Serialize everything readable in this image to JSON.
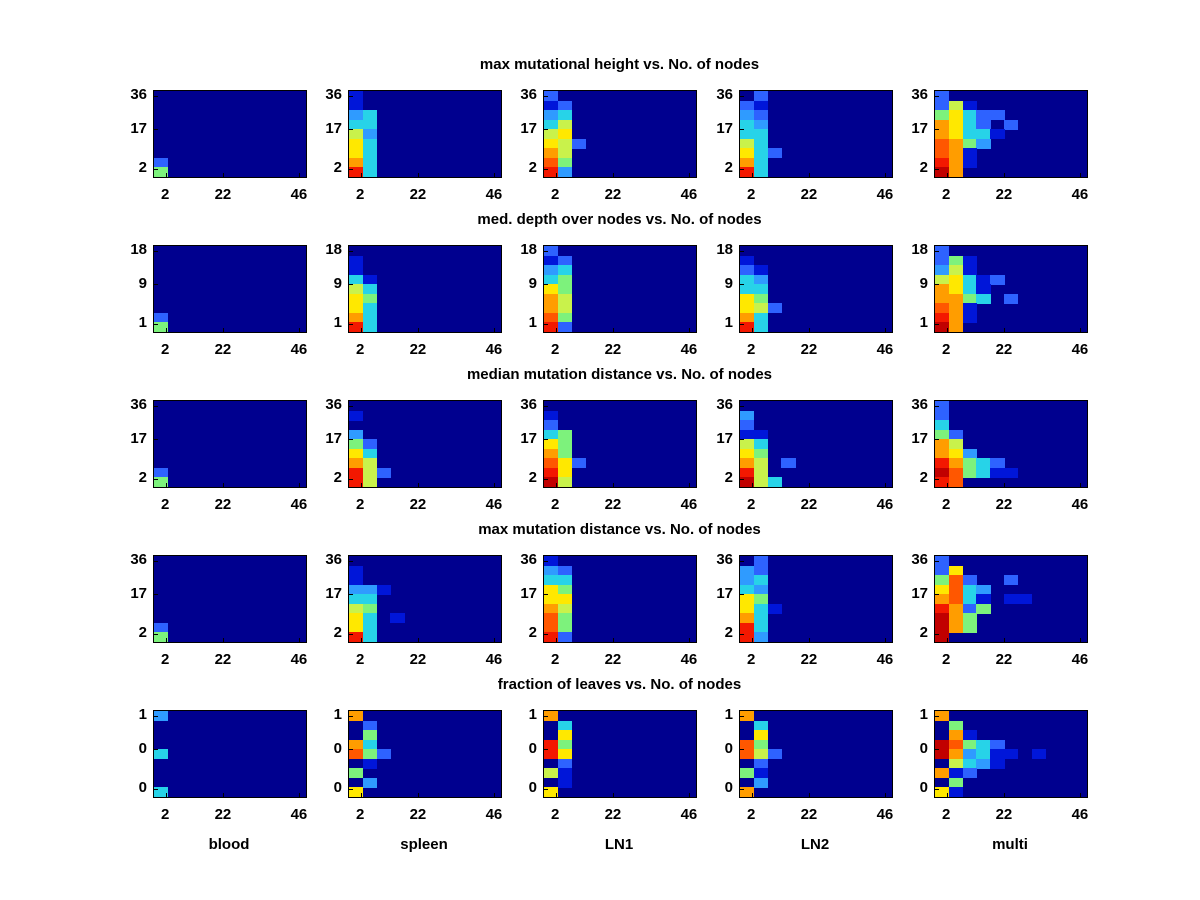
{
  "chart_data": {
    "type": "heatmap",
    "layout": "5 rows x 5 columns of subplots; each row shares a centered title; each column shares a bottom tissue label; colormap jet on dark-navy background",
    "colormap": "jet",
    "columns": [
      "blood",
      "spleen",
      "LN1",
      "LN2",
      "multi"
    ],
    "x_ticks": [
      "2",
      "22",
      "46"
    ],
    "xlabel": "No. of nodes",
    "grid_size": {
      "cols": 11,
      "rows": 9
    },
    "palette": {
      ".": "#00008f",
      "b": "#0016d9",
      "B": "#2e62ff",
      "c": "#2f9bff",
      "C": "#27d3e8",
      "g": "#7df27c",
      "Y": "#c9f24b",
      "y": "#ffe800",
      "o": "#ff9d00",
      "O": "#ff5700",
      "r": "#f31800",
      "R": "#c10000"
    },
    "rows": [
      {
        "title": "max mutational height vs. No. of nodes",
        "y_ticks": [
          "36",
          "17",
          "2"
        ],
        "grids": [
          [
            "...........",
            "...........",
            "...........",
            "...........",
            "...........",
            "...........",
            "...........",
            "B..........",
            "g.........."
          ],
          [
            "b..........",
            "b..........",
            "cC.........",
            "CC.........",
            "Yc.........",
            "yC.........",
            "yC.........",
            "oC.........",
            "rC........."
          ],
          [
            "B..........",
            "bB.........",
            "cC.........",
            "CY.........",
            "Yy.........",
            "yYB........",
            "oY.........",
            "Og.........",
            "rc........."
          ],
          [
            ".B.........",
            "Bb.........",
            "cB.........",
            "Cc.........",
            "CC.........",
            "YC.........",
            "yCB........",
            "oC.........",
            "rC........."
          ],
          [
            "B..........",
            "BYb........",
            "gyCBB......",
            "oyCB.B.....",
            "oyCCb......",
            "Oogc.......",
            "Oob........",
            "rob........",
            "Ro........."
          ]
        ]
      },
      {
        "title": "med. depth over nodes vs. No. of nodes",
        "y_ticks": [
          "18",
          "9",
          "1"
        ],
        "grids": [
          [
            "...........",
            "...........",
            "...........",
            "...........",
            "...........",
            "...........",
            "...........",
            "B..........",
            "g.........."
          ],
          [
            "...........",
            "b..........",
            "b..........",
            "Cb.........",
            "YC.........",
            "yg.........",
            "yC.........",
            "oC.........",
            "rC........."
          ],
          [
            "B..........",
            "bB.........",
            "cC.........",
            "Cg.........",
            "yg.........",
            "oY.........",
            "oY.........",
            "Og.........",
            "rB........."
          ],
          [
            "...........",
            "b..........",
            "Bb.........",
            "Cc.........",
            "CC.........",
            "yg.........",
            "yYB........",
            "oC.........",
            "rC........."
          ],
          [
            "B..........",
            "Bgb........",
            "cYb........",
            "YyCbB......",
            "oyCb.......",
            "oogC.B.....",
            "Oob........",
            "rob........",
            "Ro........."
          ]
        ]
      },
      {
        "title": "median mutation distance vs. No. of nodes",
        "y_ticks": [
          "36",
          "17",
          "2"
        ],
        "grids": [
          [
            "...........",
            "...........",
            "...........",
            "...........",
            "...........",
            "...........",
            "...........",
            "B..........",
            "g.........."
          ],
          [
            "...........",
            "b..........",
            "...........",
            "c..........",
            "gB.........",
            "yC.........",
            "oY.........",
            "rYB........",
            "rY........."
          ],
          [
            "...........",
            "b..........",
            "B..........",
            "Cg.........",
            "yg.........",
            "og.........",
            "OyB........",
            "ry.........",
            "RY........."
          ],
          [
            "...........",
            "c..........",
            "B..........",
            "bb.........",
            "YC.........",
            "yg.........",
            "oY.B.......",
            "rY.........",
            "RYC........"
          ],
          [
            "B..........",
            "B..........",
            "C..........",
            "gB.........",
            "oY.........",
            "oyc........",
            "rogCB......",
            "ROgCbb.....",
            "rO........."
          ]
        ]
      },
      {
        "title": "max mutation distance vs. No. of nodes",
        "y_ticks": [
          "36",
          "17",
          "2"
        ],
        "grids": [
          [
            "...........",
            "...........",
            "...........",
            "...........",
            "...........",
            "...........",
            "...........",
            "B..........",
            "g.........."
          ],
          [
            "...........",
            "b..........",
            "b..........",
            "ccb........",
            "CC.........",
            "Yg.........",
            "yC.b.......",
            "yC.........",
            "rC........."
          ],
          [
            "b..........",
            "cB.........",
            "CC.........",
            "yg.........",
            "yy.........",
            "oY.........",
            "Og.........",
            "Og.........",
            "rB........."
          ],
          [
            ".B.........",
            "cB.........",
            "cC.........",
            "Cc.........",
            "yg.........",
            "yCb........",
            "oC.........",
            "rC.........",
            "rc........."
          ],
          [
            "B..........",
            "By.........",
            "gOB..B.....",
            "yOCc.......",
            "oOCb.bb....",
            "roBg.......",
            "Rog........",
            "Rog........",
            "R.........."
          ]
        ]
      },
      {
        "title": "fraction of leaves vs. No. of nodes",
        "y_ticks": [
          "1",
          "0",
          "0"
        ],
        "grids": [
          [
            "c..........",
            "...........",
            "...........",
            "...........",
            "C..........",
            "...........",
            "...........",
            "...........",
            "C.........."
          ],
          [
            "o..........",
            ".B.........",
            ".g.........",
            "oC.........",
            "OgB........",
            ".b.........",
            "g..........",
            ".c.........",
            "y.........."
          ],
          [
            "o..........",
            ".C.........",
            ".y.........",
            "rg.........",
            "ry.........",
            ".B.........",
            "Yb.........",
            ".b.........",
            "y.........."
          ],
          [
            "o..........",
            ".C.........",
            ".y.........",
            "Og.........",
            "OYB........",
            ".B.........",
            "gb.........",
            ".c.........",
            "o.........."
          ],
          [
            "o..........",
            ".g.........",
            ".ob........",
            "ROgCB......",
            "RocCbb.b...",
            ".YCcb......",
            "obB........",
            ".g.........",
            "yb........."
          ]
        ]
      }
    ]
  }
}
